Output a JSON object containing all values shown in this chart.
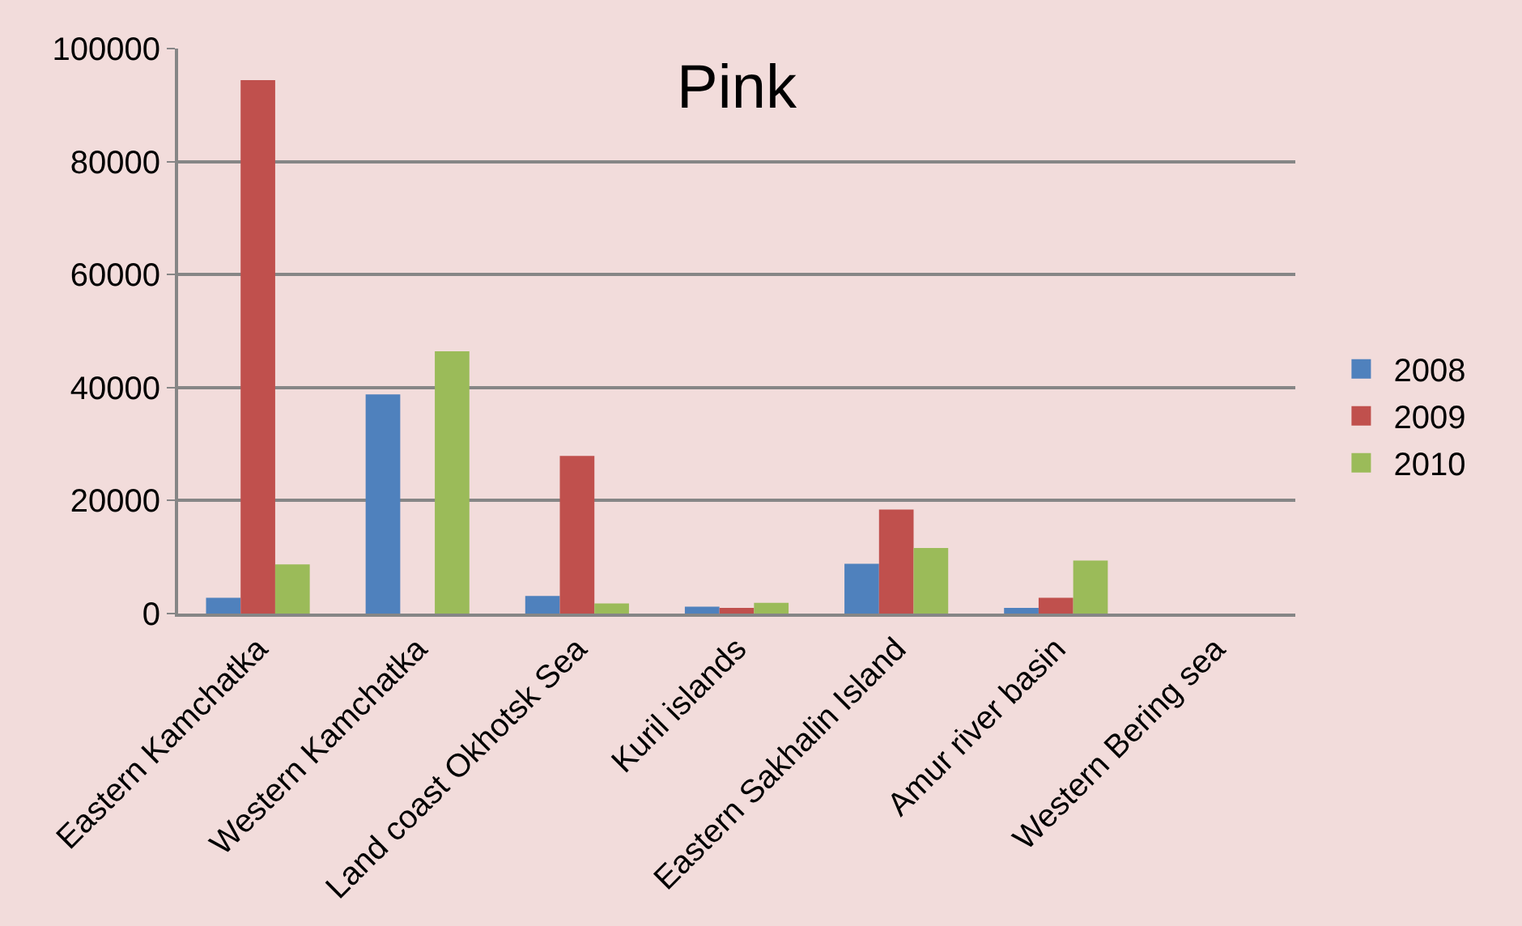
{
  "chart_data": {
    "type": "bar",
    "title": "Pink",
    "categories": [
      "Eastern Kamchatka",
      "Western Kamchatka",
      "Land coast Okhotsk Sea",
      "Kuril islands",
      "Eastern Sakhalin Island",
      "Amur river basin",
      "Western Bering sea"
    ],
    "series": [
      {
        "name": "2008",
        "color": "#4f81bd",
        "values": [
          2800,
          38800,
          3100,
          1200,
          8800,
          1000,
          null
        ]
      },
      {
        "name": "2009",
        "color": "#c0504d",
        "values": [
          94400,
          null,
          27900,
          1000,
          18400,
          2800,
          null
        ]
      },
      {
        "name": "2010",
        "color": "#9bbb59",
        "values": [
          8700,
          46400,
          1800,
          1900,
          11600,
          9400,
          null
        ]
      }
    ],
    "ylim": [
      0,
      100000
    ],
    "yticks": [
      0,
      20000,
      40000,
      60000,
      80000,
      100000
    ],
    "grid": "y",
    "legend": "right"
  }
}
